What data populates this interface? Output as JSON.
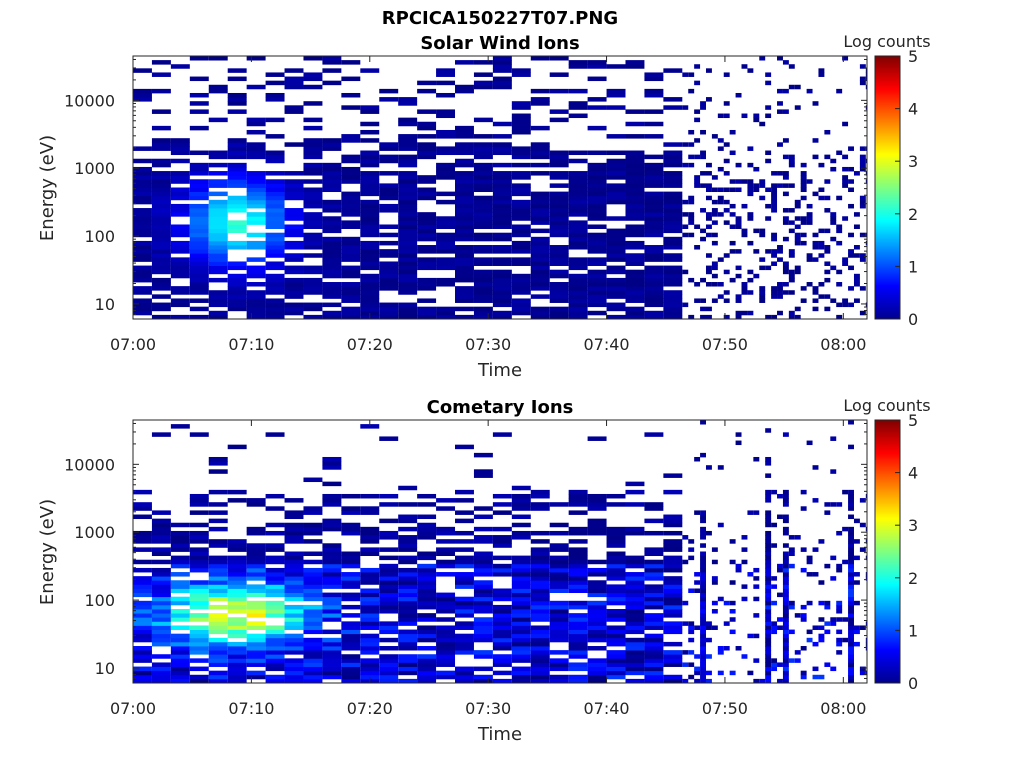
{
  "figure_title": "RPCICA150227T07.PNG",
  "chart_data": [
    {
      "type": "heatmap",
      "title": "Solar Wind Ions",
      "xlabel": "Time",
      "ylabel": "Energy (eV)",
      "xscale": "time",
      "yscale": "log",
      "x_ticks": [
        "07:00",
        "07:10",
        "07:20",
        "07:30",
        "07:40",
        "07:50",
        "08:00"
      ],
      "y_ticks": [
        "10",
        "100",
        "1000",
        "10000"
      ],
      "ylim": [
        6,
        45000
      ],
      "colorbar": {
        "label": "Log counts",
        "ticks": [
          "0",
          "1",
          "2",
          "3",
          "4",
          "5"
        ],
        "range": [
          0,
          5
        ],
        "colormap": "jet"
      },
      "peak_time": "07:08",
      "peak_energy_eV": 150,
      "max_log_counts": 2.0,
      "grid": false,
      "legend": "none"
    },
    {
      "type": "heatmap",
      "title": "Cometary Ions",
      "xlabel": "Time",
      "ylabel": "Energy (eV)",
      "xscale": "time",
      "yscale": "log",
      "x_ticks": [
        "07:00",
        "07:10",
        "07:20",
        "07:30",
        "07:40",
        "07:50",
        "08:00"
      ],
      "y_ticks": [
        "10",
        "100",
        "1000",
        "10000"
      ],
      "ylim": [
        6,
        45000
      ],
      "colorbar": {
        "label": "Log counts",
        "ticks": [
          "0",
          "1",
          "2",
          "3",
          "4",
          "5"
        ],
        "range": [
          0,
          5
        ],
        "colormap": "jet"
      },
      "peak_time": "07:08",
      "peak_energy_eV": 60,
      "max_log_counts": 2.6,
      "grid": false,
      "legend": "none"
    }
  ]
}
